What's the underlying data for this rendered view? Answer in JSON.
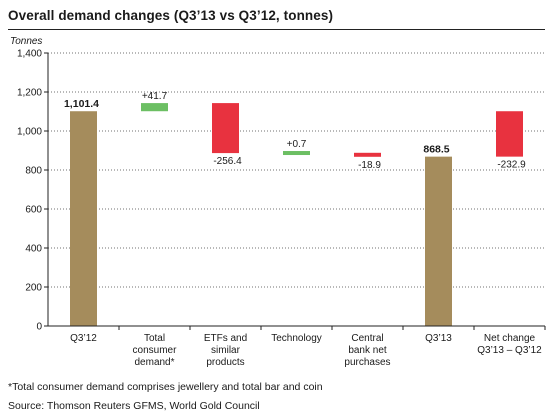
{
  "chart_data": {
    "type": "bar",
    "subtype": "waterfall",
    "title": "Overall demand changes (Q3’13 vs Q3’12, tonnes)",
    "ylabel": "Tonnes",
    "xlabel": "",
    "ylim": [
      0,
      1400
    ],
    "yticks": [
      "0",
      "200",
      "400",
      "600",
      "800",
      "1,000",
      "1,200",
      "1,400"
    ],
    "ytick_values": [
      0,
      200,
      400,
      600,
      800,
      1000,
      1200,
      1400
    ],
    "grid": true,
    "categories": [
      [
        "Q3’12"
      ],
      [
        "Total",
        "consumer",
        "demand*"
      ],
      [
        "ETFs and",
        "similar",
        "products"
      ],
      [
        "Technology"
      ],
      [
        "Central",
        "bank net",
        "purchases"
      ],
      [
        "Q3’13"
      ],
      [
        "Net change",
        "Q3’13 – Q3’12"
      ]
    ],
    "bars": [
      {
        "kind": "total",
        "from": 0,
        "to": 1101.4,
        "label": "1,101.4",
        "color": "#a58c5c"
      },
      {
        "kind": "increase",
        "from": 1101.4,
        "to": 1143.1,
        "label": "+41.7",
        "color": "#6cbf63"
      },
      {
        "kind": "decrease",
        "from": 1143.1,
        "to": 886.7,
        "label": "-256.4",
        "color": "#e8323f"
      },
      {
        "kind": "increase",
        "from": 886.7,
        "to": 887.4,
        "label": "+0.7",
        "color": "#6cbf63"
      },
      {
        "kind": "decrease",
        "from": 887.4,
        "to": 868.5,
        "label": "-18.9",
        "color": "#e8323f"
      },
      {
        "kind": "total",
        "from": 0,
        "to": 868.5,
        "label": "868.5",
        "color": "#a58c5c"
      },
      {
        "kind": "decrease",
        "from": 1101.4,
        "to": 868.5,
        "label": "-232.9",
        "color": "#e8323f"
      }
    ]
  },
  "footnotes": {
    "note": "*Total consumer demand comprises jewellery and total bar and coin",
    "source": "Source: Thomson Reuters GFMS, World Gold Council"
  }
}
